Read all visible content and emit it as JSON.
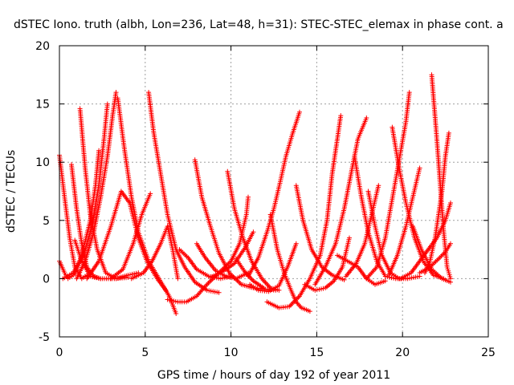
{
  "chart_data": {
    "type": "scatter",
    "title": "dSTEC Iono. truth (albh, Lon=236, Lat=48, h=31): STEC-STEC_elemax in phase cont. a",
    "xlabel": "GPS time / hours of day 192 of year 2011",
    "ylabel": "dSTEC  / TECUs",
    "xlim": [
      0,
      25
    ],
    "ylim": [
      -5,
      20
    ],
    "xticks": [
      0,
      5,
      10,
      15,
      20,
      25
    ],
    "yticks": [
      -5,
      0,
      5,
      10,
      15,
      20
    ],
    "grid": true,
    "marker": "+",
    "color": "#ff0000",
    "series": [
      {
        "points": [
          [
            0.0,
            10.6
          ],
          [
            0.3,
            7.0
          ],
          [
            0.6,
            3.5
          ],
          [
            0.9,
            1.0
          ],
          [
            1.3,
            0.0
          ],
          [
            1.6,
            0.3
          ]
        ]
      },
      {
        "points": [
          [
            0.0,
            1.5
          ],
          [
            0.3,
            0.5
          ],
          [
            0.5,
            0.0
          ],
          [
            0.9,
            0.4
          ],
          [
            1.3,
            2.0
          ],
          [
            1.8,
            5.0
          ],
          [
            2.1,
            8.0
          ],
          [
            2.3,
            11.0
          ]
        ]
      },
      {
        "points": [
          [
            0.7,
            9.8
          ],
          [
            1.0,
            6.0
          ],
          [
            1.3,
            3.0
          ],
          [
            1.6,
            1.0
          ],
          [
            2.0,
            0.2
          ],
          [
            2.4,
            0.0
          ]
        ]
      },
      {
        "points": [
          [
            1.2,
            14.6
          ],
          [
            1.5,
            9.5
          ],
          [
            1.8,
            5.5
          ],
          [
            2.2,
            2.5
          ],
          [
            2.7,
            0.5
          ],
          [
            3.3,
            0.0
          ],
          [
            4.0,
            0.3
          ],
          [
            4.6,
            0.5
          ]
        ]
      },
      {
        "points": [
          [
            0.2,
            0.0
          ],
          [
            0.8,
            0.5
          ],
          [
            1.4,
            2.0
          ],
          [
            1.9,
            4.5
          ],
          [
            2.3,
            8.0
          ],
          [
            2.6,
            12.0
          ],
          [
            2.8,
            15.0
          ]
        ]
      },
      {
        "points": [
          [
            1.0,
            0.0
          ],
          [
            1.5,
            1.5
          ],
          [
            2.0,
            4.0
          ],
          [
            2.4,
            7.0
          ],
          [
            2.8,
            10.5
          ],
          [
            3.1,
            14.0
          ],
          [
            3.3,
            16.0
          ]
        ]
      },
      {
        "points": [
          [
            0.9,
            3.3
          ],
          [
            1.3,
            1.5
          ],
          [
            1.8,
            0.2
          ],
          [
            2.4,
            0.0
          ],
          [
            3.2,
            0.0
          ],
          [
            4.0,
            0.1
          ]
        ]
      },
      {
        "points": [
          [
            3.4,
            15.5
          ],
          [
            3.8,
            11.0
          ],
          [
            4.2,
            7.0
          ],
          [
            4.6,
            4.0
          ],
          [
            5.2,
            1.5
          ],
          [
            5.8,
            0.0
          ],
          [
            6.4,
            -1.5
          ],
          [
            6.8,
            -3.0
          ]
        ]
      },
      {
        "points": [
          [
            1.6,
            0.0
          ],
          [
            2.3,
            1.5
          ],
          [
            3.0,
            4.5
          ],
          [
            3.6,
            7.5
          ],
          [
            4.1,
            6.5
          ],
          [
            4.6,
            3.5
          ],
          [
            5.1,
            1.5
          ],
          [
            5.7,
            0.0
          ],
          [
            6.2,
            -1.0
          ]
        ]
      },
      {
        "points": [
          [
            3.0,
            0.0
          ],
          [
            3.7,
            0.8
          ],
          [
            4.3,
            3.0
          ],
          [
            4.8,
            5.5
          ],
          [
            5.3,
            7.3
          ]
        ]
      },
      {
        "points": [
          [
            5.2,
            16.0
          ],
          [
            5.5,
            12.5
          ],
          [
            5.9,
            9.0
          ],
          [
            6.3,
            5.5
          ],
          [
            6.8,
            2.5
          ],
          [
            7.3,
            1.0
          ],
          [
            7.9,
            -0.3
          ],
          [
            8.6,
            -1.0
          ],
          [
            9.3,
            -1.2
          ]
        ]
      },
      {
        "points": [
          [
            4.2,
            0.0
          ],
          [
            4.9,
            0.5
          ],
          [
            5.4,
            1.5
          ],
          [
            5.9,
            3.0
          ],
          [
            6.3,
            4.5
          ],
          [
            6.6,
            2.5
          ],
          [
            6.9,
            0.0
          ]
        ]
      },
      {
        "points": [
          [
            6.3,
            -1.8
          ],
          [
            6.9,
            -2.0
          ],
          [
            7.4,
            -2.0
          ],
          [
            8.0,
            -1.5
          ],
          [
            8.6,
            -0.5
          ],
          [
            9.3,
            0.5
          ],
          [
            10.0,
            1.5
          ],
          [
            10.5,
            3.0
          ],
          [
            10.9,
            5.5
          ],
          [
            11.0,
            7.0
          ]
        ]
      },
      {
        "points": [
          [
            7.0,
            2.5
          ],
          [
            7.5,
            1.8
          ],
          [
            8.0,
            0.8
          ],
          [
            8.7,
            0.2
          ],
          [
            9.4,
            0.0
          ],
          [
            10.0,
            0.2
          ]
        ]
      },
      {
        "points": [
          [
            7.9,
            10.2
          ],
          [
            8.3,
            7.0
          ],
          [
            8.8,
            4.5
          ],
          [
            9.3,
            2.2
          ],
          [
            9.9,
            0.5
          ],
          [
            10.6,
            -0.5
          ],
          [
            11.3,
            -0.8
          ],
          [
            12.0,
            -0.9
          ],
          [
            12.6,
            -1.0
          ]
        ]
      },
      {
        "points": [
          [
            8.0,
            3.0
          ],
          [
            8.5,
            1.8
          ],
          [
            9.1,
            0.7
          ],
          [
            9.7,
            0.2
          ],
          [
            10.3,
            0.0
          ],
          [
            11.0,
            0.5
          ]
        ]
      },
      {
        "points": [
          [
            8.8,
            0.1
          ],
          [
            9.5,
            0.6
          ],
          [
            10.2,
            1.3
          ],
          [
            10.8,
            2.6
          ],
          [
            11.3,
            4.0
          ]
        ]
      },
      {
        "points": [
          [
            9.8,
            9.2
          ],
          [
            10.2,
            6.0
          ],
          [
            10.7,
            3.5
          ],
          [
            11.2,
            1.5
          ],
          [
            11.8,
            0.0
          ],
          [
            12.3,
            -0.8
          ],
          [
            12.8,
            -1.0
          ]
        ]
      },
      {
        "points": [
          [
            11.1,
            -0.5
          ],
          [
            11.6,
            -1.0
          ],
          [
            12.2,
            -1.1
          ],
          [
            12.8,
            -0.6
          ],
          [
            13.3,
            1.0
          ],
          [
            13.8,
            3.0
          ]
        ]
      },
      {
        "points": [
          [
            10.3,
            1.7
          ],
          [
            10.8,
            0.6
          ],
          [
            11.3,
            -0.2
          ],
          [
            11.9,
            -0.8
          ]
        ]
      },
      {
        "points": [
          [
            11.0,
            0.2
          ],
          [
            11.6,
            1.8
          ],
          [
            12.1,
            4.0
          ],
          [
            12.5,
            6.0
          ],
          [
            12.9,
            8.5
          ],
          [
            13.2,
            10.5
          ],
          [
            13.6,
            12.5
          ],
          [
            14.0,
            14.3
          ]
        ]
      },
      {
        "points": [
          [
            12.3,
            5.5
          ],
          [
            12.7,
            2.5
          ],
          [
            13.1,
            0.5
          ],
          [
            13.5,
            -1.0
          ],
          [
            13.8,
            -2.0
          ],
          [
            14.1,
            -2.5
          ],
          [
            14.6,
            -2.8
          ]
        ]
      },
      {
        "points": [
          [
            13.8,
            8.0
          ],
          [
            14.2,
            5.0
          ],
          [
            14.7,
            2.5
          ],
          [
            15.3,
            1.0
          ],
          [
            15.9,
            0.3
          ],
          [
            16.6,
            -0.1
          ]
        ]
      },
      {
        "points": [
          [
            12.1,
            -2.0
          ],
          [
            12.8,
            -2.5
          ],
          [
            13.4,
            -2.4
          ],
          [
            14.0,
            -1.5
          ],
          [
            14.6,
            0.0
          ],
          [
            15.2,
            2.0
          ],
          [
            15.6,
            5.0
          ],
          [
            15.9,
            9.0
          ],
          [
            16.2,
            12.0
          ],
          [
            16.4,
            14.0
          ]
        ]
      },
      {
        "points": [
          [
            14.3,
            -0.5
          ],
          [
            14.9,
            -1.0
          ],
          [
            15.5,
            -0.8
          ],
          [
            16.0,
            -0.2
          ],
          [
            16.5,
            1.0
          ],
          [
            16.9,
            3.5
          ]
        ]
      },
      {
        "points": [
          [
            14.9,
            -0.5
          ],
          [
            15.5,
            1.0
          ],
          [
            16.1,
            3.0
          ],
          [
            16.6,
            6.0
          ],
          [
            17.0,
            9.0
          ],
          [
            17.4,
            12.0
          ],
          [
            17.9,
            13.8
          ]
        ]
      },
      {
        "points": [
          [
            16.7,
            0.2
          ],
          [
            17.3,
            1.3
          ],
          [
            17.8,
            3.0
          ],
          [
            18.2,
            5.5
          ],
          [
            18.6,
            8.0
          ]
        ]
      },
      {
        "points": [
          [
            16.2,
            2.0
          ],
          [
            16.8,
            1.5
          ],
          [
            17.4,
            1.0
          ],
          [
            17.9,
            0.0
          ],
          [
            18.4,
            -0.5
          ],
          [
            19.0,
            -0.2
          ]
        ]
      },
      {
        "points": [
          [
            17.2,
            10.5
          ],
          [
            17.6,
            7.0
          ],
          [
            18.0,
            4.0
          ],
          [
            18.5,
            1.5
          ],
          [
            19.0,
            0.2
          ],
          [
            19.6,
            0.0
          ],
          [
            20.3,
            0.0
          ],
          [
            21.0,
            0.2
          ]
        ]
      },
      {
        "points": [
          [
            18.0,
            7.5
          ],
          [
            18.4,
            4.5
          ],
          [
            18.8,
            2.0
          ],
          [
            19.3,
            0.5
          ],
          [
            19.8,
            0.0
          ]
        ]
      },
      {
        "points": [
          [
            17.9,
            0.0
          ],
          [
            18.5,
            1.0
          ],
          [
            19.0,
            3.5
          ],
          [
            19.3,
            6.0
          ],
          [
            19.6,
            8.5
          ],
          [
            19.9,
            11.0
          ],
          [
            20.2,
            13.5
          ],
          [
            20.4,
            16.0
          ]
        ]
      },
      {
        "points": [
          [
            19.2,
            0.3
          ],
          [
            19.7,
            2.0
          ],
          [
            20.2,
            4.5
          ],
          [
            20.6,
            7.0
          ],
          [
            21.0,
            9.5
          ]
        ]
      },
      {
        "points": [
          [
            19.4,
            13.0
          ],
          [
            19.8,
            9.5
          ],
          [
            20.2,
            6.5
          ],
          [
            20.7,
            3.5
          ],
          [
            21.2,
            1.5
          ],
          [
            21.8,
            0.3
          ],
          [
            22.4,
            0.0
          ]
        ]
      },
      {
        "points": [
          [
            20.6,
            4.5
          ],
          [
            21.1,
            2.5
          ],
          [
            21.7,
            0.8
          ],
          [
            22.3,
            0.0
          ],
          [
            22.8,
            -0.3
          ]
        ]
      },
      {
        "points": [
          [
            21.3,
            0.5
          ],
          [
            21.6,
            1.5
          ],
          [
            21.9,
            3.5
          ],
          [
            22.1,
            5.5
          ],
          [
            22.3,
            7.5
          ],
          [
            22.5,
            10.5
          ],
          [
            22.7,
            12.5
          ]
        ]
      },
      {
        "points": [
          [
            21.7,
            17.5
          ],
          [
            22.0,
            12.0
          ],
          [
            22.2,
            8.0
          ],
          [
            22.4,
            4.0
          ],
          [
            22.6,
            1.0
          ],
          [
            22.8,
            0.0
          ]
        ]
      },
      {
        "points": [
          [
            19.9,
            0.0
          ],
          [
            20.5,
            0.5
          ],
          [
            21.0,
            1.5
          ],
          [
            21.5,
            2.5
          ],
          [
            22.0,
            3.5
          ],
          [
            22.5,
            5.0
          ],
          [
            22.8,
            6.5
          ]
        ]
      },
      {
        "points": [
          [
            21.0,
            0.5
          ],
          [
            21.6,
            1.0
          ],
          [
            22.1,
            1.7
          ],
          [
            22.5,
            2.3
          ],
          [
            22.8,
            3.0
          ]
        ]
      }
    ]
  }
}
